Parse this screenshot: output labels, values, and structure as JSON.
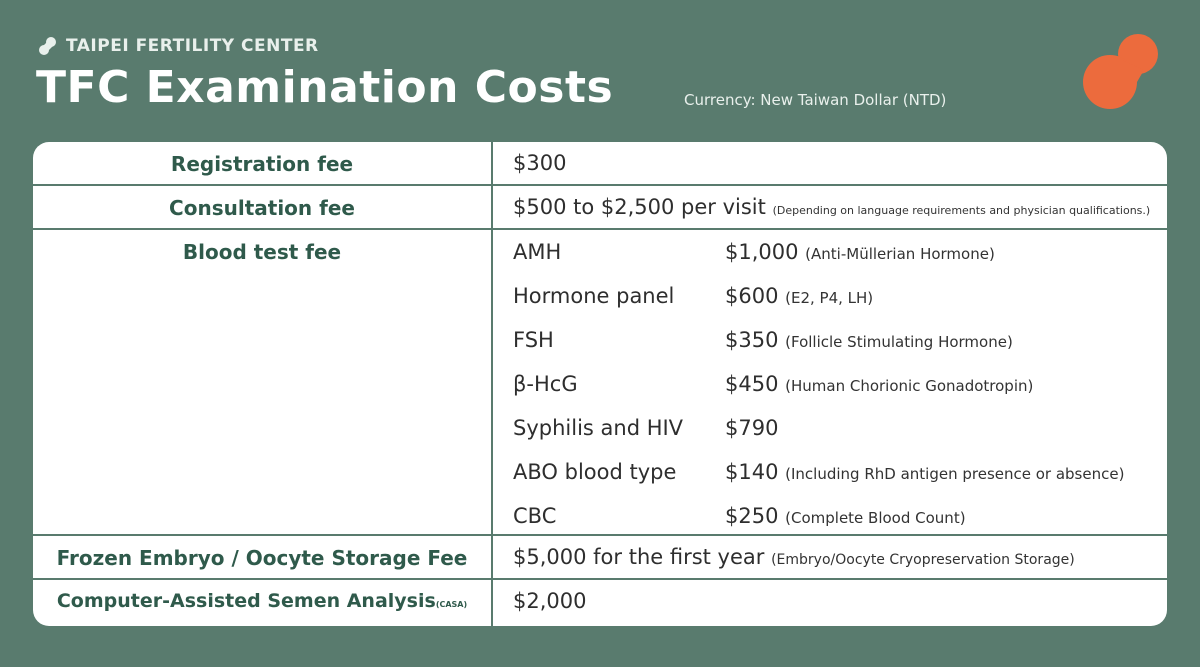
{
  "header": {
    "brand": "TAIPEI FERTILITY CENTER",
    "title": "TFC Examination Costs",
    "currency": "Currency: New Taiwan Dollar (NTD)"
  },
  "colors": {
    "background": "#597b6e",
    "heading_green": "#2f5a4b",
    "accent_orange": "#ec6b3d"
  },
  "rows": {
    "registration": {
      "label": "Registration fee",
      "value": "$300"
    },
    "consultation": {
      "label": "Consultation fee",
      "value": "$500 to $2,500 per visit",
      "note": "(Depending on language requirements and physician qualifications.)"
    },
    "blood": {
      "label": "Blood test fee",
      "items": [
        {
          "name": "AMH",
          "price": "$1,000",
          "note": "(Anti-Müllerian Hormone)"
        },
        {
          "name": "Hormone panel",
          "price": "$600",
          "note": "(E2, P4, LH)"
        },
        {
          "name": "FSH",
          "price": "$350",
          "note": "(Follicle Stimulating Hormone)"
        },
        {
          "name": "β-HcG",
          "price": "$450",
          "note": "(Human Chorionic Gonadotropin)"
        },
        {
          "name": "Syphilis and HIV",
          "price": "$790",
          "note": ""
        },
        {
          "name": "ABO blood type",
          "price": "$140",
          "note": "(Including RhD antigen presence or absence)"
        },
        {
          "name": "CBC",
          "price": "$250",
          "note": "(Complete Blood Count)"
        }
      ]
    },
    "storage": {
      "label": "Frozen Embryo / Oocyte Storage Fee",
      "value": "$5,000 for the first year",
      "note": "(Embryo/Oocyte Cryopreservation Storage)"
    },
    "casa": {
      "label": "Computer-Assisted Semen Analysis",
      "label_suffix": "(CASA)",
      "value": "$2,000"
    }
  }
}
